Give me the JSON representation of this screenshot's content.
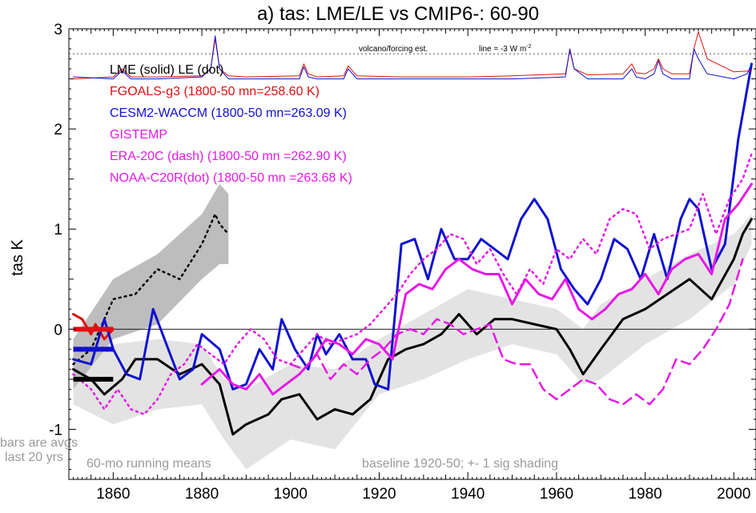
{
  "chart_data": {
    "type": "line",
    "title": "a) tas: LME/LE vs CMIP6-: 60-90",
    "ylabel": "tas K",
    "xlabel": "",
    "xlim": [
      1850,
      2005
    ],
    "ylim": [
      -1.5,
      3.0
    ],
    "x_ticks": [
      1860,
      1880,
      1900,
      1920,
      1940,
      1960,
      1980,
      2000
    ],
    "y_ticks": [
      -1,
      0,
      1,
      2,
      3
    ],
    "reference_lines": {
      "zero": 0.0,
      "volcano_dotted_level": 2.75
    },
    "colors": {
      "lme": "#000000",
      "fgoals": "#e01010",
      "cesm": "#1010d0",
      "obs": "#e619e6",
      "shade": "#e3e3e3",
      "shade_dark": "#bdbdbd",
      "grey_text": "#9a9a9a"
    },
    "legend": {
      "lme_le": "LME (solid)   LE (dot)",
      "fgoals": "FGOALS-g3 (1800-50 mn=258.60 K)",
      "cesm": "CESM2-WACCM (1800-50 mn=263.09 K)",
      "gistemp": "GISTEMP",
      "era20c": "ERA-20C (dash) (1800-50 mn =262.90 K)",
      "noaa": "NOAA-C20R(dot) (1800-50 mn =263.68 K)"
    },
    "annotations": {
      "volcano": "volcano/forcing est.",
      "line_eq": "line = -3 W m",
      "line_eq_sup": "-2",
      "bars1": "bars are avgs",
      "bars2": "last 20 yrs",
      "running": "60-mo running means",
      "baseline": "baseline 1920-50; +- 1 sig shading"
    },
    "series": [
      {
        "name": "LME (solid)",
        "style": "solid",
        "color": "#000000",
        "x": [
          1851,
          1855,
          1858,
          1862,
          1865,
          1870,
          1875,
          1880,
          1884,
          1887,
          1890,
          1895,
          1898,
          1902,
          1906,
          1910,
          1914,
          1918,
          1922,
          1926,
          1930,
          1934,
          1938,
          1942,
          1946,
          1950,
          1955,
          1960,
          1963,
          1966,
          1970,
          1975,
          1980,
          1985,
          1990,
          1995,
          2000,
          2002,
          2004
        ],
        "y": [
          -0.4,
          -0.5,
          -0.65,
          -0.5,
          -0.3,
          -0.3,
          -0.45,
          -0.35,
          -0.55,
          -1.05,
          -0.95,
          -0.85,
          -0.7,
          -0.65,
          -0.9,
          -0.8,
          -0.85,
          -0.7,
          -0.3,
          -0.2,
          -0.15,
          -0.05,
          0.15,
          -0.05,
          0.1,
          0.1,
          0.05,
          0.0,
          -0.2,
          -0.45,
          -0.2,
          0.1,
          0.2,
          0.35,
          0.5,
          0.3,
          0.7,
          0.95,
          1.1
        ]
      },
      {
        "name": "LE (dot)",
        "style": "dot",
        "color": "#000000",
        "x": [
          1851,
          1855,
          1860,
          1865,
          1870,
          1875,
          1880,
          1883,
          1884,
          1886
        ],
        "y": [
          -0.35,
          -0.2,
          0.3,
          0.35,
          0.6,
          0.5,
          0.85,
          1.15,
          1.05,
          0.95
        ]
      },
      {
        "name": "FGOALS-g3",
        "style": "solid",
        "color": "#e01010",
        "x": [
          1851,
          1853,
          1855,
          1856,
          1858,
          1860
        ],
        "y": [
          0.15,
          0.1,
          -0.05,
          0.05,
          -0.1,
          0.0
        ]
      },
      {
        "name": "CESM2-WACCM",
        "style": "solid",
        "color": "#1010d0",
        "x": [
          1851,
          1855,
          1858,
          1860,
          1863,
          1866,
          1869,
          1872,
          1875,
          1878,
          1880,
          1884,
          1887,
          1890,
          1893,
          1896,
          1898,
          1901,
          1904,
          1906,
          1908,
          1911,
          1914,
          1917,
          1919,
          1922,
          1925,
          1928,
          1931,
          1934,
          1937,
          1940,
          1943,
          1946,
          1949,
          1952,
          1955,
          1958,
          1961,
          1964,
          1967,
          1970,
          1973,
          1976,
          1979,
          1982,
          1985,
          1988,
          1990,
          1992,
          1995,
          1998,
          2001,
          2004
        ],
        "y": [
          -0.3,
          -0.35,
          0.1,
          -0.2,
          -0.45,
          -0.5,
          0.2,
          -0.15,
          -0.5,
          -0.4,
          -0.05,
          -0.2,
          -0.6,
          -0.55,
          -0.2,
          -0.4,
          0.1,
          -0.2,
          -0.4,
          -0.05,
          -0.25,
          -0.05,
          -0.3,
          -0.3,
          -0.55,
          -0.6,
          0.85,
          0.9,
          0.5,
          1.0,
          0.7,
          0.7,
          0.9,
          0.8,
          0.7,
          1.1,
          1.3,
          1.1,
          0.6,
          0.4,
          0.25,
          0.5,
          0.9,
          0.8,
          0.5,
          0.95,
          0.5,
          1.1,
          1.3,
          1.2,
          0.6,
          0.85,
          1.9,
          2.65
        ]
      },
      {
        "name": "GISTEMP",
        "style": "solid",
        "color": "#e619e6",
        "x": [
          1880,
          1884,
          1887,
          1890,
          1893,
          1896,
          1899,
          1902,
          1905,
          1908,
          1911,
          1914,
          1917,
          1920,
          1923,
          1926,
          1929,
          1932,
          1935,
          1938,
          1941,
          1944,
          1947,
          1950,
          1953,
          1956,
          1959,
          1962,
          1965,
          1968,
          1971,
          1974,
          1977,
          1980,
          1983,
          1986,
          1989,
          1992,
          1995,
          1998,
          2001,
          2004
        ],
        "y": [
          -0.55,
          -0.4,
          -0.55,
          -0.6,
          -0.45,
          -0.65,
          -0.55,
          -0.45,
          -0.3,
          -0.1,
          -0.15,
          -0.25,
          -0.1,
          -0.15,
          -0.3,
          0.35,
          0.45,
          0.4,
          0.6,
          0.7,
          0.6,
          0.55,
          0.55,
          0.25,
          0.5,
          0.35,
          0.3,
          0.5,
          0.2,
          0.1,
          0.2,
          0.35,
          0.4,
          0.55,
          0.35,
          0.6,
          0.7,
          0.75,
          0.55,
          1.1,
          1.25,
          1.45
        ]
      },
      {
        "name": "ERA-20C (dash)",
        "style": "dash",
        "color": "#e619e6",
        "x": [
          1900,
          1903,
          1906,
          1909,
          1912,
          1915,
          1918,
          1921,
          1924,
          1927,
          1930,
          1933,
          1936,
          1939,
          1942,
          1945,
          1948,
          1951,
          1954,
          1957,
          1960,
          1963,
          1966,
          1969,
          1972,
          1975,
          1978,
          1981,
          1984,
          1987,
          1990,
          1993,
          1996,
          1999,
          2002
        ],
        "y": [
          -0.35,
          -0.4,
          -0.25,
          -0.5,
          -0.35,
          -0.45,
          -0.3,
          -0.2,
          -0.05,
          0.0,
          -0.05,
          0.1,
          0.05,
          -0.05,
          0.0,
          0.05,
          -0.3,
          -0.35,
          -0.35,
          -0.6,
          -0.7,
          -0.6,
          -0.5,
          -0.55,
          -0.7,
          -0.75,
          -0.65,
          -0.75,
          -0.6,
          -0.3,
          -0.35,
          -0.2,
          0.0,
          0.25,
          0.7
        ]
      },
      {
        "name": "NOAA-C20R(dot)",
        "style": "dot",
        "color": "#e619e6",
        "x": [
          1851,
          1855,
          1858,
          1861,
          1864,
          1867,
          1870,
          1873,
          1876,
          1879,
          1882,
          1885,
          1888,
          1891,
          1894,
          1897,
          1900,
          1903,
          1906,
          1909,
          1912,
          1915,
          1918,
          1921,
          1924,
          1927,
          1930,
          1933,
          1936,
          1939,
          1942,
          1945,
          1948,
          1951,
          1954,
          1957,
          1960,
          1963,
          1966,
          1969,
          1972,
          1975,
          1978,
          1981,
          1984,
          1987,
          1990,
          1993,
          1996,
          1999,
          2002,
          2004
        ],
        "y": [
          -0.45,
          -0.6,
          -0.8,
          -0.6,
          -0.8,
          -0.85,
          -0.7,
          -0.45,
          -0.35,
          -0.15,
          -0.25,
          -0.35,
          -0.15,
          0.0,
          -0.1,
          -0.3,
          -0.35,
          -0.2,
          -0.05,
          -0.15,
          -0.1,
          -0.05,
          0.05,
          0.2,
          0.35,
          0.55,
          0.7,
          0.8,
          0.95,
          0.9,
          0.65,
          0.8,
          0.55,
          0.35,
          0.6,
          0.45,
          0.8,
          0.7,
          0.9,
          0.75,
          1.1,
          1.2,
          1.15,
          0.8,
          0.9,
          0.95,
          1.0,
          1.35,
          0.95,
          1.3,
          1.5,
          1.75
        ]
      },
      {
        "name": "volcano/forcing est. (red)",
        "style": "solid",
        "color": "#e01010",
        "x": [
          1851,
          1860,
          1862,
          1864,
          1870,
          1880,
          1882,
          1883,
          1884,
          1886,
          1890,
          1902,
          1903,
          1904,
          1906,
          1912,
          1913,
          1915,
          1925,
          1940,
          1950,
          1962,
          1963,
          1964,
          1967,
          1975,
          1977,
          1978,
          1980,
          1982,
          1983,
          1984,
          1986,
          1990,
          1991,
          1992,
          1994,
          2000,
          2004
        ],
        "y": [
          2.5,
          2.52,
          2.6,
          2.52,
          2.52,
          2.53,
          2.6,
          2.9,
          2.6,
          2.53,
          2.52,
          2.53,
          2.65,
          2.55,
          2.52,
          2.53,
          2.63,
          2.53,
          2.52,
          2.52,
          2.53,
          2.55,
          2.78,
          2.6,
          2.54,
          2.55,
          2.65,
          2.56,
          2.55,
          2.6,
          2.7,
          2.6,
          2.55,
          2.55,
          2.8,
          2.97,
          2.7,
          2.57,
          2.58
        ]
      },
      {
        "name": "volcano/forcing est. (blue)",
        "style": "solid",
        "color": "#1010d0",
        "x": [
          1851,
          1860,
          1862,
          1864,
          1870,
          1880,
          1882,
          1883,
          1884,
          1886,
          1890,
          1902,
          1903,
          1904,
          1906,
          1912,
          1913,
          1915,
          1925,
          1940,
          1950,
          1962,
          1963,
          1964,
          1967,
          1975,
          1977,
          1978,
          1980,
          1982,
          1983,
          1984,
          1986,
          1990,
          1991,
          1992,
          1994,
          2000,
          2003,
          2004
        ],
        "y": [
          2.52,
          2.5,
          2.58,
          2.5,
          2.5,
          2.52,
          2.6,
          2.93,
          2.6,
          2.5,
          2.5,
          2.5,
          2.62,
          2.52,
          2.5,
          2.5,
          2.6,
          2.5,
          2.5,
          2.5,
          2.5,
          2.52,
          2.8,
          2.6,
          2.5,
          2.5,
          2.6,
          2.52,
          2.5,
          2.55,
          2.68,
          2.55,
          2.5,
          2.5,
          2.8,
          2.7,
          2.55,
          2.5,
          2.55,
          2.65
        ]
      }
    ],
    "shading": {
      "lme_sigma_x": [
        1851,
        1860,
        1870,
        1880,
        1885,
        1890,
        1900,
        1910,
        1920,
        1930,
        1940,
        1950,
        1960,
        1966,
        1970,
        1980,
        1990,
        2000,
        2004
      ],
      "lme_sigma_upper": [
        -0.2,
        -0.15,
        -0.1,
        -0.15,
        -0.5,
        -0.6,
        -0.35,
        -0.4,
        -0.1,
        0.15,
        0.4,
        0.3,
        0.2,
        0.0,
        0.25,
        0.5,
        0.75,
        0.95,
        1.15
      ],
      "lme_sigma_lower": [
        -0.75,
        -0.95,
        -0.8,
        -0.75,
        -1.1,
        -1.4,
        -1.1,
        -1.2,
        -0.65,
        -0.5,
        -0.3,
        -0.15,
        -0.25,
        -0.55,
        -0.5,
        -0.15,
        0.1,
        0.45,
        0.85
      ],
      "le_sigma_x": [
        1851,
        1860,
        1870,
        1880,
        1884,
        1886
      ],
      "le_sigma_upper": [
        -0.1,
        0.5,
        0.75,
        1.15,
        1.45,
        1.35
      ],
      "le_sigma_lower": [
        -0.6,
        -0.1,
        0.05,
        0.5,
        0.65,
        0.65
      ]
    },
    "bars_last20yrs": [
      {
        "color": "#e01010",
        "y": 0.0
      },
      {
        "color": "#000000",
        "y": -0.2,
        "style": "dot"
      },
      {
        "color": "#1010d0",
        "y": -0.2
      },
      {
        "color": "#000000",
        "y": -0.5
      }
    ]
  }
}
